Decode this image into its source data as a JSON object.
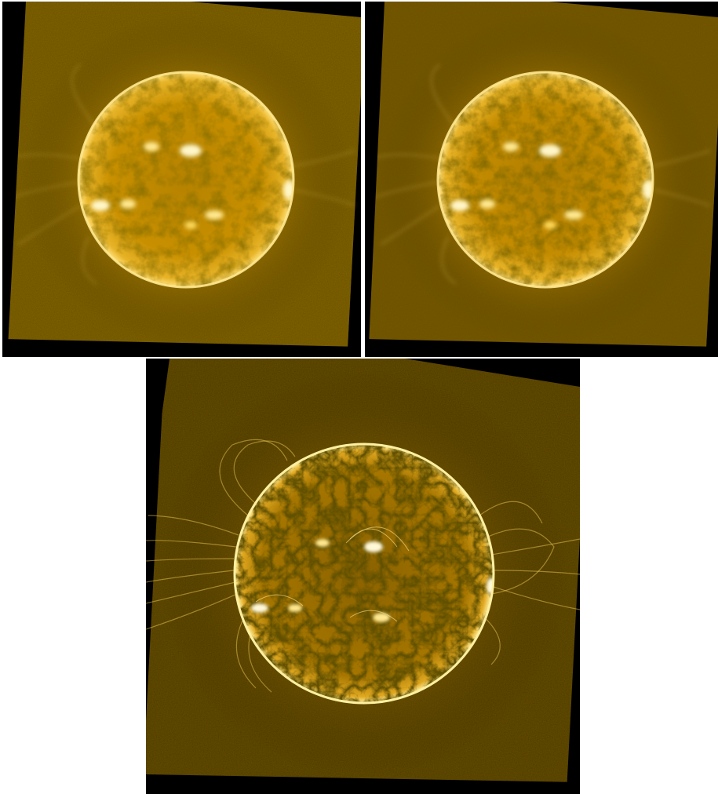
{
  "figure": {
    "description_visible_text": "",
    "panels": [
      {
        "id": "panel-1",
        "subject": "sun-disk",
        "variant": "original",
        "palette": [
          "#000000",
          "#3a2a00",
          "#c89000",
          "#ffd95a",
          "#fff6c8"
        ]
      },
      {
        "id": "panel-2",
        "subject": "sun-disk",
        "variant": "processed",
        "palette": [
          "#000000",
          "#3a2a00",
          "#c89000",
          "#ffd95a",
          "#fff6c8"
        ]
      },
      {
        "id": "panel-3",
        "subject": "sun-disk",
        "variant": "enhanced",
        "palette": [
          "#000000",
          "#2a1e00",
          "#b07a00",
          "#ffcc33",
          "#fff8d8"
        ]
      }
    ]
  }
}
